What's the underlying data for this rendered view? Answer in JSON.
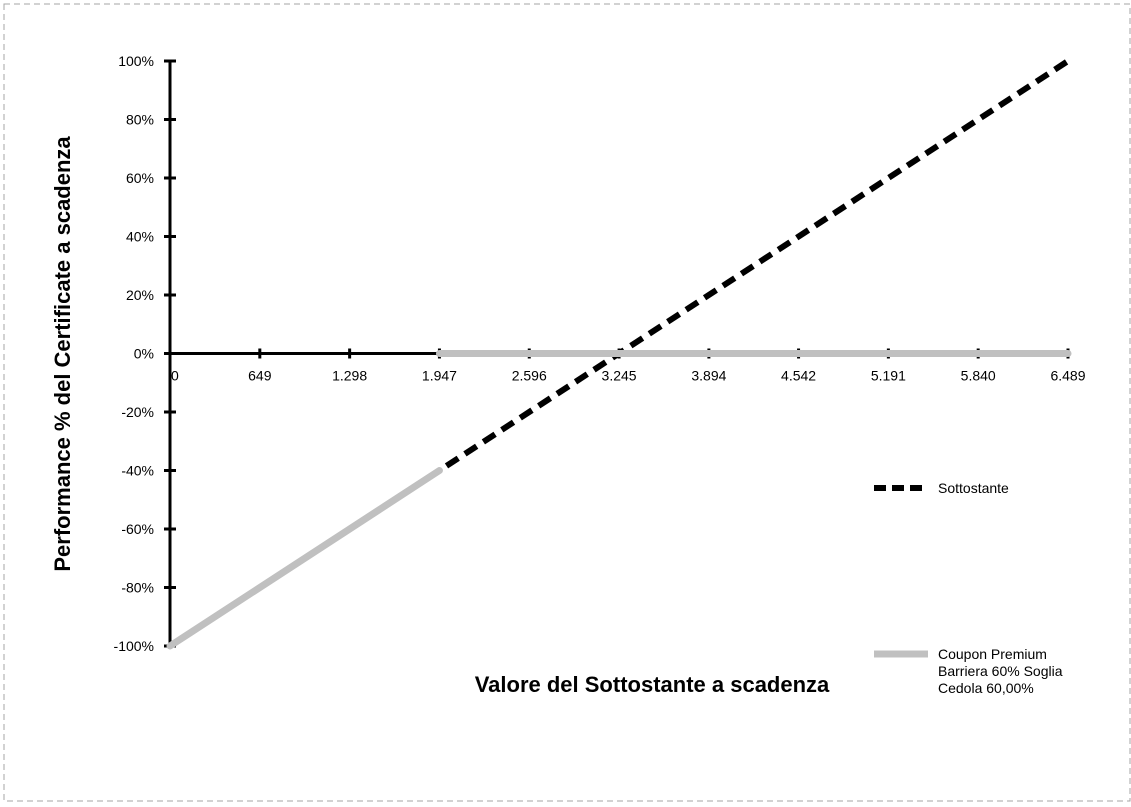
{
  "chart_data": {
    "type": "line",
    "xlabel": "Valore del Sottostante a scadenza",
    "ylabel": "Performance % del Certificate a scadenza",
    "xlim": [
      0,
      6489
    ],
    "ylim": [
      -100,
      100
    ],
    "x_ticks": [
      0,
      649,
      1298,
      1947,
      2596,
      3245,
      3894,
      4542,
      5191,
      5840,
      6489
    ],
    "x_tick_labels": [
      "0",
      "649",
      "1.298",
      "1.947",
      "2.596",
      "3.245",
      "3.894",
      "4.542",
      "5.191",
      "5.840",
      "6.489"
    ],
    "y_ticks": [
      -100,
      -80,
      -60,
      -40,
      -20,
      0,
      20,
      40,
      60,
      80,
      100
    ],
    "y_tick_labels": [
      "-100%",
      "-80%",
      "-60%",
      "-40%",
      "-20%",
      "0%",
      "20%",
      "40%",
      "60%",
      "80%",
      "100%"
    ],
    "legend_position": "right",
    "series": [
      {
        "name": "Sottostante",
        "style": "dashed",
        "color": "#000000",
        "x": [
          0,
          6489
        ],
        "y": [
          -100,
          100
        ]
      },
      {
        "name": "Coupon Premium Barriera 60% Soglia Cedola 60,00%",
        "name_lines": [
          "Coupon Premium",
          "Barriera 60% Soglia",
          "Cedola 60,00%"
        ],
        "style": "solid",
        "color": "#c0c0c0",
        "segments": [
          {
            "x": [
              0,
              1947
            ],
            "y": [
              -100,
              -40
            ]
          },
          {
            "x": [
              1947,
              6489
            ],
            "y": [
              0,
              0
            ]
          }
        ]
      }
    ]
  }
}
